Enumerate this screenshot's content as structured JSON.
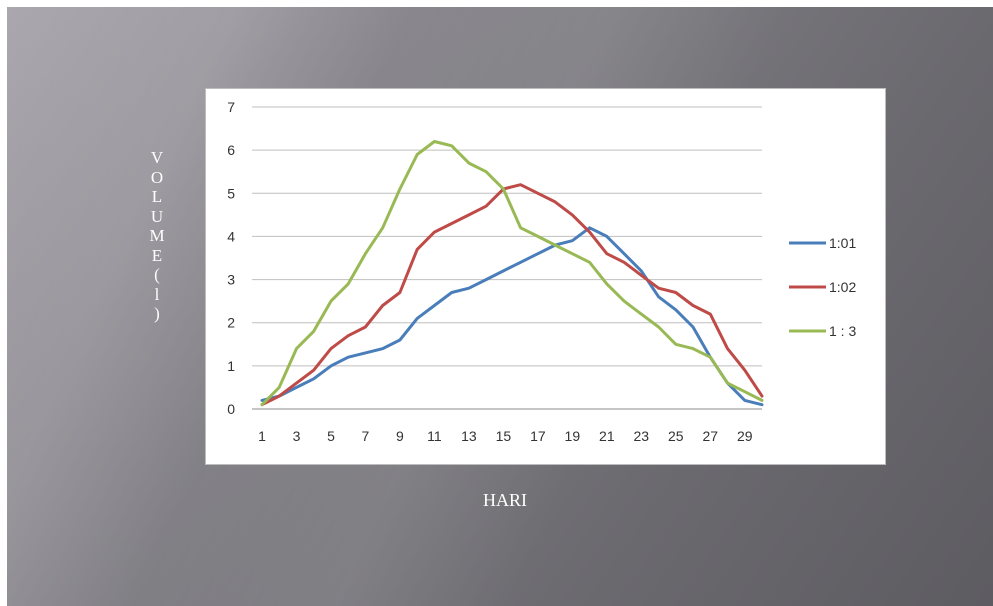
{
  "chart_data": {
    "type": "line",
    "xlabel": "HARI",
    "ylabel": "VOLUME(l)",
    "x": [
      1,
      2,
      3,
      4,
      5,
      6,
      7,
      8,
      9,
      10,
      11,
      12,
      13,
      14,
      15,
      16,
      17,
      18,
      19,
      20,
      21,
      22,
      23,
      24,
      25,
      26,
      27,
      28,
      29,
      30
    ],
    "x_tick_labels": [
      "1",
      "3",
      "5",
      "7",
      "9",
      "11",
      "13",
      "15",
      "17",
      "19",
      "21",
      "23",
      "25",
      "27",
      "29"
    ],
    "y_tick_labels": [
      "0",
      "1",
      "2",
      "3",
      "4",
      "5",
      "6",
      "7"
    ],
    "ylim": [
      0,
      7
    ],
    "grid": "horizontal",
    "legend_position": "right",
    "series": [
      {
        "name": "1:01",
        "color": "#4a7ebb",
        "values": [
          0.2,
          0.3,
          0.5,
          0.7,
          1.0,
          1.2,
          1.3,
          1.4,
          1.6,
          2.1,
          2.4,
          2.7,
          2.8,
          3.0,
          3.2,
          3.4,
          3.6,
          3.8,
          3.9,
          4.2,
          4.0,
          3.6,
          3.2,
          2.6,
          2.3,
          1.9,
          1.2,
          0.6,
          0.2,
          0.1
        ]
      },
      {
        "name": "1:02",
        "color": "#be4b48",
        "values": [
          0.1,
          0.3,
          0.6,
          0.9,
          1.4,
          1.7,
          1.9,
          2.4,
          2.7,
          3.7,
          4.1,
          4.3,
          4.5,
          4.7,
          5.1,
          5.2,
          5.0,
          4.8,
          4.5,
          4.1,
          3.6,
          3.4,
          3.1,
          2.8,
          2.7,
          2.4,
          2.2,
          1.4,
          0.9,
          0.3
        ]
      },
      {
        "name": "1 : 3",
        "color": "#98b954",
        "values": [
          0.1,
          0.5,
          1.4,
          1.8,
          2.5,
          2.9,
          3.6,
          4.2,
          5.1,
          5.9,
          6.2,
          6.1,
          5.7,
          5.5,
          5.1,
          4.2,
          4.0,
          3.8,
          3.6,
          3.4,
          2.9,
          2.5,
          2.2,
          1.9,
          1.5,
          1.4,
          1.2,
          0.6,
          0.4,
          0.2
        ]
      }
    ]
  }
}
